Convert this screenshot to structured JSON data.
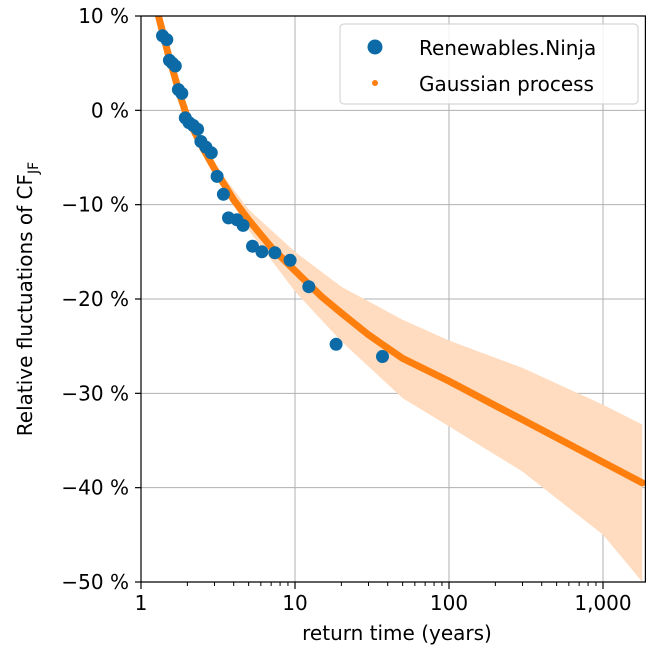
{
  "chart_data": {
    "type": "scatter",
    "xlabel": "return time (years)",
    "ylabel_main": "Relative fluctuations of CF",
    "ylabel_sub": "JF",
    "x_scale": "log",
    "xlim": [
      1,
      1800
    ],
    "ylim": [
      -50,
      10
    ],
    "x_ticks": [
      1,
      10,
      100,
      1000
    ],
    "x_tick_labels": [
      "1",
      "10",
      "100",
      "1,000"
    ],
    "y_ticks": [
      10,
      0,
      -10,
      -20,
      -30,
      -40,
      -50
    ],
    "y_tick_labels": [
      "10 %",
      "0 %",
      "−10 %",
      "−20 %",
      "−30 %",
      "−40 %",
      "−50 %"
    ],
    "grid": true,
    "legend_position": "top-right",
    "colors": {
      "ninja": "#0c6ba6",
      "gp": "#ff7f0e",
      "band": "#ffdcc0"
    },
    "series": [
      {
        "name": "Renewables.Ninja",
        "marker": "dot",
        "points": [
          {
            "x": 1.38,
            "y": 7.9
          },
          {
            "x": 1.47,
            "y": 7.5
          },
          {
            "x": 1.53,
            "y": 5.3
          },
          {
            "x": 1.6,
            "y": 5.0
          },
          {
            "x": 1.67,
            "y": 4.7
          },
          {
            "x": 1.75,
            "y": 2.2
          },
          {
            "x": 1.84,
            "y": 1.8
          },
          {
            "x": 1.94,
            "y": -0.8
          },
          {
            "x": 2.05,
            "y": -1.3
          },
          {
            "x": 2.18,
            "y": -1.6
          },
          {
            "x": 2.33,
            "y": -2.0
          },
          {
            "x": 2.45,
            "y": -3.3
          },
          {
            "x": 2.64,
            "y": -3.9
          },
          {
            "x": 2.86,
            "y": -4.5
          },
          {
            "x": 3.12,
            "y": -7.0
          },
          {
            "x": 3.43,
            "y": -8.9
          },
          {
            "x": 3.7,
            "y": -11.4
          },
          {
            "x": 4.2,
            "y": -11.6
          },
          {
            "x": 4.6,
            "y": -12.2
          },
          {
            "x": 5.3,
            "y": -14.4
          },
          {
            "x": 6.1,
            "y": -15.0
          },
          {
            "x": 7.4,
            "y": -15.1
          },
          {
            "x": 9.3,
            "y": -15.9
          },
          {
            "x": 12.3,
            "y": -18.7
          },
          {
            "x": 18.5,
            "y": -24.8
          },
          {
            "x": 37.0,
            "y": -26.1
          }
        ]
      },
      {
        "name": "Gaussian process",
        "marker": "small-dot",
        "curve": [
          {
            "x": 1.3,
            "y": 10.0
          },
          {
            "x": 1.5,
            "y": 6.0
          },
          {
            "x": 1.8,
            "y": 1.5
          },
          {
            "x": 2.0,
            "y": -0.8
          },
          {
            "x": 2.5,
            "y": -3.9
          },
          {
            "x": 3.0,
            "y": -6.2
          },
          {
            "x": 4.0,
            "y": -9.5
          },
          {
            "x": 5.0,
            "y": -11.6
          },
          {
            "x": 7.0,
            "y": -14.5
          },
          {
            "x": 10.0,
            "y": -17.0
          },
          {
            "x": 15.0,
            "y": -19.8
          },
          {
            "x": 20.0,
            "y": -21.5
          },
          {
            "x": 30.0,
            "y": -23.8
          },
          {
            "x": 50.0,
            "y": -26.3
          },
          {
            "x": 100.0,
            "y": -28.7
          },
          {
            "x": 200.0,
            "y": -31.3
          },
          {
            "x": 300.0,
            "y": -32.8
          },
          {
            "x": 500.0,
            "y": -34.7
          },
          {
            "x": 1000.0,
            "y": -37.3
          },
          {
            "x": 1800.0,
            "y": -39.5
          }
        ],
        "band_upper": [
          {
            "x": 1.3,
            "y": 10.3
          },
          {
            "x": 2.0,
            "y": -0.5
          },
          {
            "x": 3.0,
            "y": -5.7
          },
          {
            "x": 5.0,
            "y": -10.5
          },
          {
            "x": 10.0,
            "y": -15.0
          },
          {
            "x": 20.0,
            "y": -18.7
          },
          {
            "x": 50.0,
            "y": -22.2
          },
          {
            "x": 100.0,
            "y": -24.4
          },
          {
            "x": 300.0,
            "y": -27.3
          },
          {
            "x": 1000.0,
            "y": -31.2
          },
          {
            "x": 1800.0,
            "y": -33.3
          }
        ],
        "band_lower": [
          {
            "x": 1.3,
            "y": 9.7
          },
          {
            "x": 2.0,
            "y": -1.1
          },
          {
            "x": 3.0,
            "y": -6.7
          },
          {
            "x": 5.0,
            "y": -12.7
          },
          {
            "x": 10.0,
            "y": -19.2
          },
          {
            "x": 20.0,
            "y": -24.5
          },
          {
            "x": 50.0,
            "y": -30.5
          },
          {
            "x": 100.0,
            "y": -33.5
          },
          {
            "x": 300.0,
            "y": -38.3
          },
          {
            "x": 1000.0,
            "y": -45.0
          },
          {
            "x": 1800.0,
            "y": -50.0
          }
        ]
      }
    ]
  }
}
